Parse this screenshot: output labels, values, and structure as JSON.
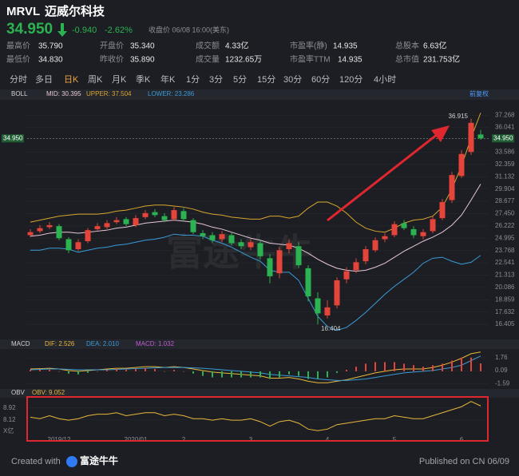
{
  "header": {
    "symbol": "MRVL",
    "name": "迈威尔科技",
    "price": "34.950",
    "change": "-0.940",
    "change_pct": "-2.62%",
    "status": "收盘价 06/08 16:00(美东)"
  },
  "stats": [
    [
      {
        "label": "最高价",
        "value": "35.790"
      },
      {
        "label": "开盘价",
        "value": "35.340"
      },
      {
        "label": "成交额",
        "value": "4.33亿"
      },
      {
        "label": "市盈率(静)",
        "value": "14.935"
      },
      {
        "label": "总股本",
        "value": "6.63亿"
      }
    ],
    [
      {
        "label": "最低价",
        "value": "34.830"
      },
      {
        "label": "昨收价",
        "value": "35.890"
      },
      {
        "label": "成交量",
        "value": "1232.65万"
      },
      {
        "label": "市盈率TTM",
        "value": "14.935"
      },
      {
        "label": "总市值",
        "value": "231.753亿"
      }
    ]
  ],
  "tabs": [
    "分时",
    "多日",
    "日K",
    "周K",
    "月K",
    "季K",
    "年K",
    "1分",
    "3分",
    "5分",
    "15分",
    "30分",
    "60分",
    "120分",
    "4小时"
  ],
  "active_tab_index": 2,
  "watermark": "富途牛牛",
  "footer": {
    "created": "Created with",
    "brand": "富途牛牛",
    "published": "Published on CN 06/09"
  },
  "chart_data": [
    {
      "type": "candlestick",
      "indicator": "BOLL",
      "adjust": "前复权",
      "up_color": "#e5443a",
      "down_color": "#2bb352",
      "categories": [
        null,
        null,
        null,
        "2019/12",
        null,
        null,
        null,
        null,
        null,
        null,
        null,
        "2020/01",
        null,
        null,
        null,
        null,
        "2",
        null,
        null,
        null,
        null,
        null,
        null,
        "3",
        null,
        null,
        null,
        null,
        null,
        null,
        null,
        "4",
        null,
        null,
        null,
        null,
        null,
        null,
        "5",
        null,
        null,
        null,
        null,
        null,
        null,
        "6",
        null,
        null
      ],
      "open": [
        25.3,
        25.7,
        26.1,
        26.2,
        24.9,
        23.9,
        24.7,
        25.9,
        26.1,
        26.6,
        26.9,
        26.3,
        27.1,
        27.6,
        27.2,
        26.9,
        27.7,
        26.8,
        25.5,
        25.3,
        24.9,
        25.3,
        24.6,
        24.1,
        24.5,
        23.0,
        21.5,
        23.9,
        24.2,
        22.0,
        19.0,
        17.3,
        18.3,
        20.9,
        21.8,
        22.7,
        23.8,
        24.9,
        25.3,
        26.5,
        25.9,
        25.2,
        25.7,
        27.0,
        28.8,
        31.2,
        33.6,
        35.34
      ],
      "high": [
        25.9,
        26.3,
        26.6,
        26.4,
        25.1,
        24.9,
        26.0,
        26.5,
        26.8,
        27.1,
        27.1,
        27.3,
        27.8,
        27.9,
        27.5,
        28.1,
        28.0,
        27.0,
        25.8,
        25.6,
        25.7,
        25.6,
        24.9,
        24.9,
        24.8,
        23.4,
        24.1,
        24.9,
        24.6,
        22.3,
        19.6,
        18.8,
        21.1,
        22.1,
        23.0,
        24.2,
        25.1,
        25.5,
        26.7,
        26.8,
        26.2,
        25.9,
        27.2,
        28.9,
        31.6,
        33.8,
        36.915,
        35.79
      ],
      "low": [
        25.1,
        25.5,
        25.9,
        24.8,
        23.5,
        23.7,
        24.5,
        25.7,
        25.9,
        26.4,
        26.2,
        26.1,
        26.9,
        27.1,
        26.6,
        26.7,
        26.7,
        25.4,
        24.9,
        24.5,
        24.6,
        24.3,
        23.9,
        23.8,
        22.9,
        20.5,
        21.0,
        23.5,
        22.0,
        18.7,
        16.404,
        17.0,
        18.0,
        20.5,
        21.5,
        22.4,
        23.6,
        24.6,
        25.1,
        25.8,
        25.0,
        24.9,
        25.5,
        26.8,
        28.5,
        31.0,
        33.3,
        34.83
      ],
      "close": [
        25.6,
        26.0,
        26.3,
        25.0,
        23.8,
        24.6,
        25.8,
        26.2,
        26.5,
        26.8,
        26.4,
        27.0,
        27.5,
        27.3,
        26.8,
        27.8,
        26.9,
        25.6,
        25.2,
        24.8,
        25.4,
        24.5,
        24.2,
        24.6,
        23.2,
        21.2,
        23.8,
        24.5,
        22.3,
        19.2,
        17.5,
        18.1,
        20.8,
        21.7,
        22.6,
        23.9,
        24.8,
        25.2,
        26.4,
        26.0,
        25.3,
        25.6,
        26.9,
        28.6,
        31.3,
        33.4,
        36.5,
        34.95
      ],
      "series": [
        {
          "name": "MID: 30.395",
          "color": "#e6c8d6",
          "values": [
            25.2,
            25.3,
            25.5,
            25.6,
            25.6,
            25.5,
            25.6,
            25.7,
            25.8,
            26.0,
            26.1,
            26.3,
            26.5,
            26.6,
            26.7,
            26.8,
            26.7,
            26.6,
            26.4,
            26.1,
            25.9,
            25.6,
            25.3,
            25.0,
            24.8,
            24.5,
            24.4,
            24.3,
            24.0,
            23.5,
            22.9,
            22.4,
            22.0,
            21.8,
            21.7,
            21.8,
            22.1,
            22.5,
            23.1,
            23.7,
            24.2,
            24.7,
            25.1,
            25.6,
            26.3,
            27.3,
            28.8,
            30.395
          ]
        },
        {
          "name": "UPPER: 37.504",
          "color": "#d9a62e",
          "values": [
            26.6,
            26.8,
            27.0,
            27.2,
            27.3,
            27.4,
            27.4,
            27.4,
            27.5,
            27.7,
            27.8,
            28.0,
            28.2,
            28.3,
            28.3,
            28.2,
            28.1,
            27.9,
            27.6,
            27.4,
            27.3,
            27.1,
            27.0,
            26.9,
            26.9,
            27.2,
            27.2,
            27.0,
            27.2,
            28.0,
            28.6,
            28.6,
            28.2,
            27.5,
            26.6,
            26.0,
            25.7,
            25.6,
            26.0,
            26.5,
            26.8,
            26.9,
            27.2,
            28.1,
            29.9,
            32.2,
            35.0,
            37.504
          ]
        },
        {
          "name": "LOWER: 23.286",
          "color": "#3a9bd6",
          "values": [
            23.8,
            23.8,
            24.0,
            24.0,
            23.9,
            23.6,
            23.8,
            24.0,
            24.1,
            24.3,
            24.4,
            24.6,
            24.8,
            24.9,
            25.1,
            25.4,
            25.3,
            25.3,
            25.2,
            24.8,
            24.5,
            24.1,
            23.6,
            23.1,
            22.7,
            21.8,
            21.6,
            21.6,
            20.8,
            19.0,
            17.2,
            16.2,
            15.8,
            16.1,
            16.8,
            17.6,
            18.5,
            19.4,
            20.2,
            20.9,
            21.6,
            22.5,
            23.0,
            23.1,
            22.7,
            22.4,
            22.6,
            23.286
          ]
        }
      ],
      "last_price": {
        "value": 34.95,
        "label": "34.950"
      },
      "ylim": [
        15.3,
        38.4
      ],
      "yticks": [
        37.268,
        36.041,
        33.586,
        32.359,
        31.132,
        29.904,
        28.677,
        {
          "value": 27.45,
          "label": "27.450"
        },
        26.222,
        24.995,
        23.768,
        22.541,
        21.313,
        20.086,
        18.859,
        17.632,
        16.405
      ]
    },
    {
      "type": "macd",
      "indicator": "MACD",
      "up_color": "#e5443a",
      "down_color": "#2bb352",
      "series": [
        {
          "name": "DIF: 2.526",
          "color": "#e8b83a",
          "kind": "line",
          "values": [
            0.3,
            0.35,
            0.4,
            0.3,
            0.1,
            0.0,
            0.1,
            0.2,
            0.3,
            0.4,
            0.4,
            0.5,
            0.6,
            0.6,
            0.5,
            0.6,
            0.5,
            0.3,
            0.1,
            -0.1,
            -0.2,
            -0.3,
            -0.4,
            -0.5,
            -0.6,
            -0.9,
            -0.9,
            -0.8,
            -1.0,
            -1.3,
            -1.5,
            -1.5,
            -1.3,
            -1.1,
            -0.8,
            -0.5,
            -0.2,
            0.0,
            0.2,
            0.3,
            0.3,
            0.3,
            0.5,
            0.8,
            1.2,
            1.7,
            2.3,
            2.526
          ]
        },
        {
          "name": "DEA: 2.010",
          "color": "#3a9bd6",
          "kind": "line",
          "values": [
            0.2,
            0.25,
            0.3,
            0.3,
            0.25,
            0.2,
            0.2,
            0.2,
            0.2,
            0.25,
            0.3,
            0.35,
            0.4,
            0.45,
            0.5,
            0.5,
            0.5,
            0.45,
            0.4,
            0.3,
            0.2,
            0.1,
            0.0,
            -0.1,
            -0.2,
            -0.4,
            -0.5,
            -0.6,
            -0.7,
            -0.8,
            -1.0,
            -1.1,
            -1.2,
            -1.2,
            -1.1,
            -1.0,
            -0.8,
            -0.6,
            -0.4,
            -0.2,
            -0.1,
            0.0,
            0.1,
            0.3,
            0.5,
            0.8,
            1.4,
            2.01
          ]
        },
        {
          "name": "MACD: 1.032",
          "color": "#c05ad0",
          "kind": "bar",
          "values": [
            0.2,
            0.2,
            0.2,
            0,
            -0.3,
            -0.4,
            -0.2,
            0,
            0.2,
            0.3,
            0.2,
            0.3,
            0.4,
            0.3,
            0,
            0.2,
            0,
            -0.3,
            -0.6,
            -0.8,
            -0.8,
            -0.8,
            -0.8,
            -0.8,
            -0.8,
            -1.0,
            -0.8,
            -0.4,
            -0.6,
            -1.0,
            -1.0,
            -0.8,
            -0.2,
            0.2,
            0.6,
            1.0,
            1.2,
            1.2,
            1.2,
            1.0,
            0.8,
            0.6,
            0.8,
            1.0,
            1.4,
            1.8,
            1.8,
            1.032
          ]
        }
      ],
      "ylim": [
        -2.2,
        2.6
      ],
      "yticks": [
        1.76,
        0.09,
        -1.59
      ]
    },
    {
      "type": "line",
      "indicator": "OBV",
      "unit_label": "X亿",
      "series": [
        {
          "name": "OBV: 9.052",
          "color": "#e8b83a",
          "values": [
            8.3,
            8.2,
            8.4,
            8.2,
            8.1,
            8.2,
            8.4,
            8.5,
            8.5,
            8.6,
            8.4,
            8.5,
            8.6,
            8.6,
            8.4,
            8.5,
            8.4,
            8.2,
            8.2,
            8.1,
            8.2,
            8.1,
            8.1,
            8.2,
            8.0,
            7.7,
            8.0,
            8.1,
            7.9,
            7.5,
            7.4,
            7.5,
            7.8,
            7.9,
            8.0,
            8.1,
            8.2,
            8.2,
            8.4,
            8.3,
            8.2,
            8.2,
            8.4,
            8.6,
            8.8,
            9.0,
            9.35,
            9.052
          ]
        }
      ],
      "ylim": [
        6.93,
        9.6
      ],
      "yticks": [
        8.92,
        8.12
      ]
    }
  ]
}
